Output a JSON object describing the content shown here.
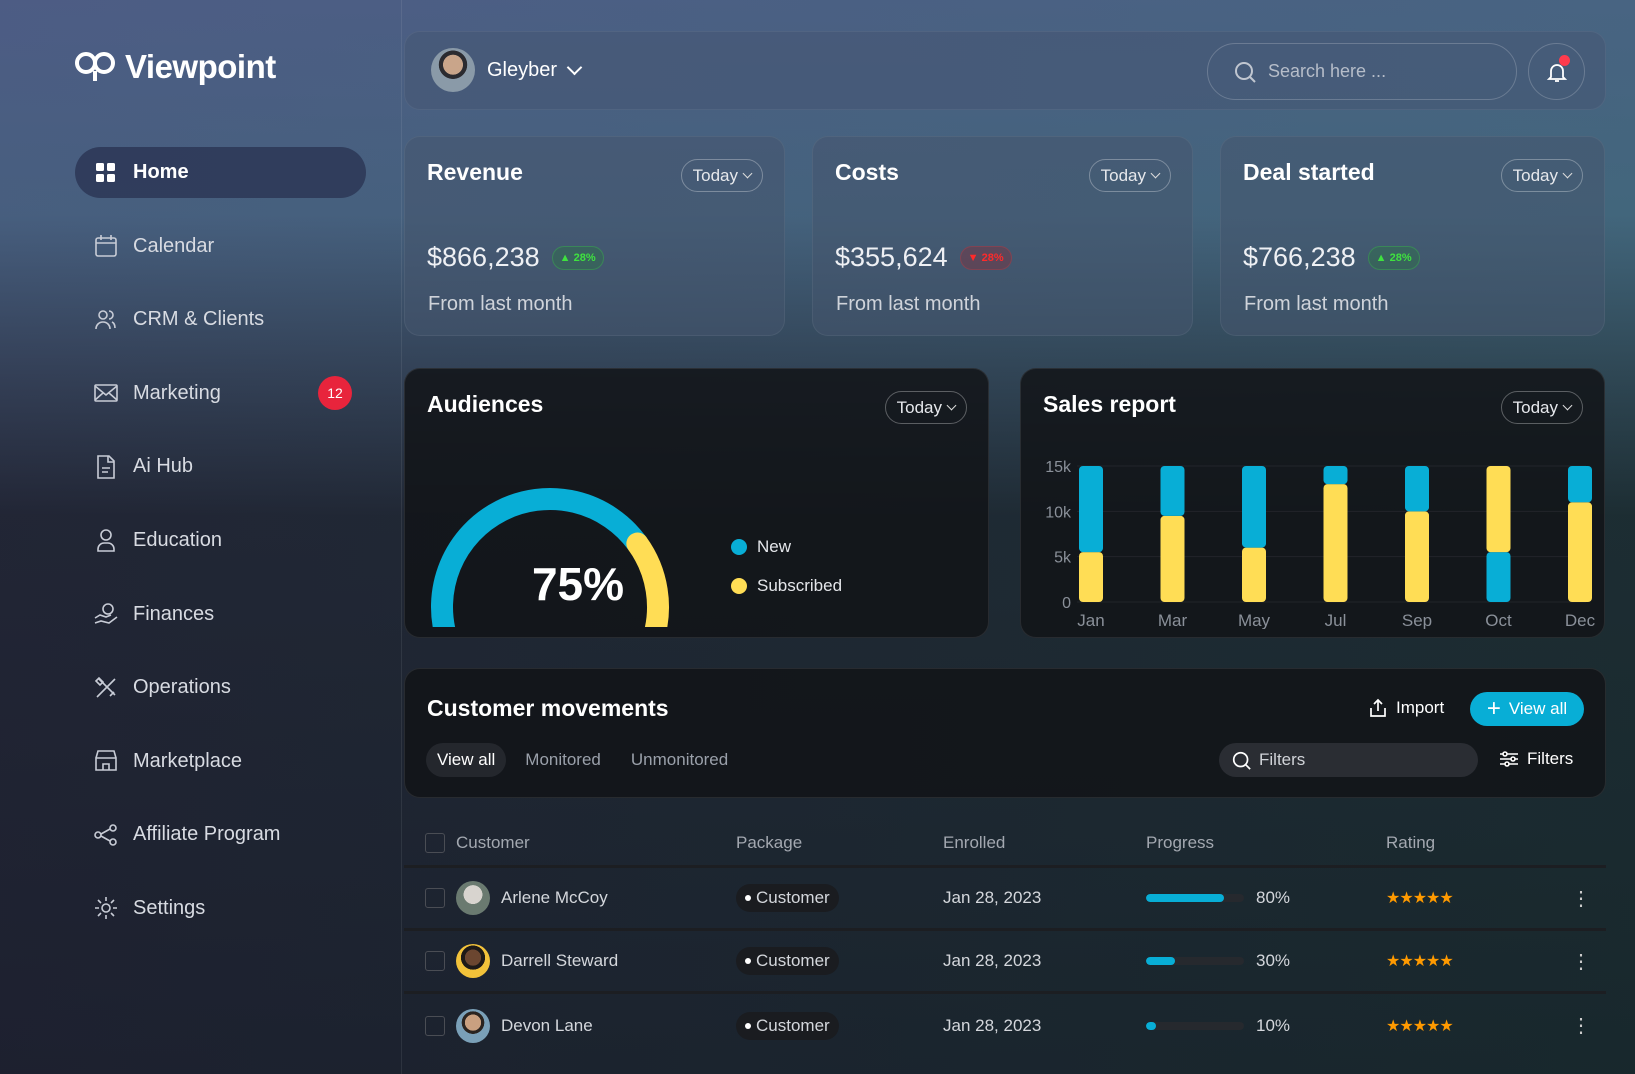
{
  "app": {
    "name": "Viewpoint"
  },
  "sidebar": {
    "items": [
      {
        "label": "Home",
        "icon": "grid-icon",
        "active": true
      },
      {
        "label": "Calendar",
        "icon": "calendar-icon"
      },
      {
        "label": "CRM & Clients",
        "icon": "users-icon"
      },
      {
        "label": "Marketing",
        "icon": "mail-icon",
        "badge": "12"
      },
      {
        "label": "Ai Hub",
        "icon": "document-icon"
      },
      {
        "label": "Education",
        "icon": "user-icon"
      },
      {
        "label": "Finances",
        "icon": "hand-coin-icon"
      },
      {
        "label": "Operations",
        "icon": "tools-icon"
      },
      {
        "label": "Marketplace",
        "icon": "store-icon"
      },
      {
        "label": "Affiliate Program",
        "icon": "network-icon"
      },
      {
        "label": "Settings",
        "icon": "gear-icon"
      }
    ]
  },
  "header": {
    "user": "Gleyber",
    "search_placeholder": "Search here ..."
  },
  "kpis": [
    {
      "title": "Revenue",
      "period": "Today",
      "value": "$866,238",
      "change": "28%",
      "direction": "up",
      "sub": "From last month"
    },
    {
      "title": "Costs",
      "period": "Today",
      "value": "$355,624",
      "change": "28%",
      "direction": "down",
      "sub": "From last month"
    },
    {
      "title": "Deal started",
      "period": "Today",
      "value": "$766,238",
      "change": "28%",
      "direction": "up",
      "sub": "From last month"
    }
  ],
  "audiences": {
    "title": "Audiences",
    "period": "Today",
    "value": "75%",
    "percent": 75,
    "legend": [
      "New",
      "Subscribed"
    ],
    "colors": {
      "new": "#08aed6",
      "subscribed": "#ffdd55"
    }
  },
  "chart_data": {
    "type": "bar",
    "title": "Sales report",
    "period": "Today",
    "stacked": true,
    "categories": [
      "Jan",
      "Mar",
      "May",
      "Jul",
      "Sep",
      "Oct",
      "Dec"
    ],
    "yticks": [
      "0",
      "5k",
      "10k",
      "15k"
    ],
    "ylim": [
      0,
      15000
    ],
    "series": [
      {
        "name": "Subscribed",
        "color": "#ffdd55",
        "values": [
          5500,
          9500,
          6000,
          13000,
          10000,
          9500,
          11000
        ]
      },
      {
        "name": "New",
        "color": "#08aed6",
        "values": [
          9500,
          5500,
          9000,
          2000,
          5000,
          5500,
          4000
        ]
      }
    ],
    "stack_order": [
      [
        "Subscribed",
        "New"
      ],
      [
        "Subscribed",
        "New"
      ],
      [
        "Subscribed",
        "New"
      ],
      [
        "Subscribed",
        "New"
      ],
      [
        "Subscribed",
        "New"
      ],
      [
        "New",
        "Subscribed"
      ],
      [
        "Subscribed",
        "New"
      ]
    ]
  },
  "movements": {
    "title": "Customer movements",
    "import": "Import",
    "view_all": "View all",
    "tabs": [
      "View all",
      "Monitored",
      "Unmonitored"
    ],
    "filter_placeholder": "Filters",
    "filters": "Filters",
    "columns": [
      "Customer",
      "Package",
      "Enrolled",
      "Progress",
      "Rating"
    ],
    "rows": [
      {
        "name": "Arlene McCoy",
        "package": "Customer",
        "enrolled": "Jan 28, 2023",
        "progress": "80%",
        "progress_value": 80,
        "rating": 5
      },
      {
        "name": "Darrell Steward",
        "package": "Customer",
        "enrolled": "Jan 28, 2023",
        "progress": "30%",
        "progress_value": 30,
        "rating": 5
      },
      {
        "name": "Devon Lane",
        "package": "Customer",
        "enrolled": "Jan 28, 2023",
        "progress": "10%",
        "progress_value": 10,
        "rating": 5
      }
    ]
  }
}
